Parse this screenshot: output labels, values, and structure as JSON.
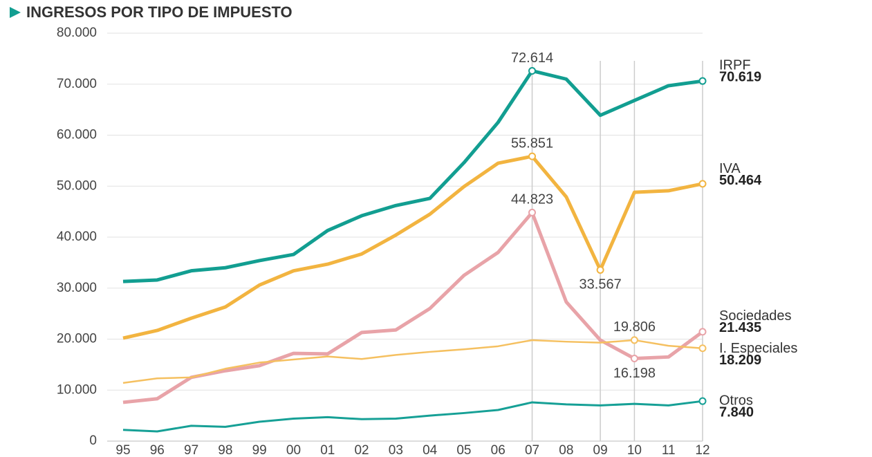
{
  "chart_data": {
    "type": "line",
    "title": "INGRESOS POR TIPO DE IMPUESTO",
    "categories": [
      "95",
      "96",
      "97",
      "98",
      "99",
      "00",
      "01",
      "02",
      "03",
      "04",
      "05",
      "06",
      "07",
      "08",
      "09",
      "10",
      "11",
      "12"
    ],
    "ylim": [
      0,
      80000
    ],
    "yticks": [
      0,
      {
        "value": 10000,
        "label": "10.000"
      },
      {
        "value": 20000,
        "label": "20.000"
      },
      {
        "value": 30000,
        "label": "30.000"
      },
      {
        "value": 40000,
        "label": "40.000"
      },
      {
        "value": 50000,
        "label": "50.000"
      },
      {
        "value": 60000,
        "label": "60.000"
      },
      {
        "value": 70000,
        "label": "70.000"
      },
      {
        "value": 80000,
        "label": "80.000"
      }
    ],
    "grid": true,
    "series": [
      {
        "name": "IRPF",
        "color": "#129e91",
        "values": [
          31300,
          31600,
          33400,
          34000,
          35400,
          36600,
          41300,
          44200,
          46200,
          47600,
          54600,
          62500,
          72614,
          71000,
          63900,
          66800,
          69700,
          70619
        ],
        "value_labels": [
          null,
          null,
          null,
          null,
          null,
          null,
          null,
          null,
          null,
          null,
          null,
          null,
          "72.614",
          null,
          null,
          null,
          null,
          "70.619"
        ]
      },
      {
        "name": "IVA",
        "color": "#f2b440",
        "values": [
          20200,
          21700,
          24100,
          26300,
          30600,
          33400,
          34700,
          36700,
          40400,
          44500,
          49900,
          54500,
          55851,
          47900,
          33567,
          48800,
          49100,
          50464
        ],
        "value_labels": [
          null,
          null,
          null,
          null,
          null,
          null,
          null,
          null,
          null,
          null,
          null,
          null,
          "55.851",
          null,
          "33.567",
          null,
          null,
          "50.464"
        ]
      },
      {
        "name": "Sociedades",
        "color": "#e8a3a8",
        "values": [
          7600,
          8300,
          12500,
          13800,
          14800,
          17200,
          17100,
          21300,
          21800,
          26000,
          32500,
          37000,
          44823,
          27300,
          19800,
          16198,
          16500,
          21435
        ],
        "value_labels": [
          null,
          null,
          null,
          null,
          null,
          null,
          null,
          null,
          null,
          null,
          null,
          null,
          "44.823",
          null,
          null,
          "16.198",
          null,
          "21.435"
        ]
      },
      {
        "name": "I. Especiales",
        "color": "#f5c060",
        "values": [
          11400,
          12300,
          12500,
          14200,
          15400,
          16000,
          16600,
          16100,
          16900,
          17500,
          18000,
          18600,
          19800,
          19500,
          19300,
          19806,
          18700,
          18209
        ],
        "value_labels": [
          null,
          null,
          null,
          null,
          null,
          null,
          null,
          null,
          null,
          null,
          null,
          null,
          null,
          null,
          null,
          "19.806",
          null,
          "18.209"
        ]
      },
      {
        "name": "Otros",
        "color": "#16a096",
        "values": [
          2200,
          1900,
          3000,
          2800,
          3800,
          4400,
          4700,
          4300,
          4400,
          5000,
          5500,
          6100,
          7600,
          7200,
          7000,
          7300,
          7000,
          7840
        ],
        "value_labels": [
          null,
          null,
          null,
          null,
          null,
          null,
          null,
          null,
          null,
          null,
          null,
          null,
          null,
          null,
          null,
          null,
          null,
          "7.840"
        ]
      }
    ]
  }
}
